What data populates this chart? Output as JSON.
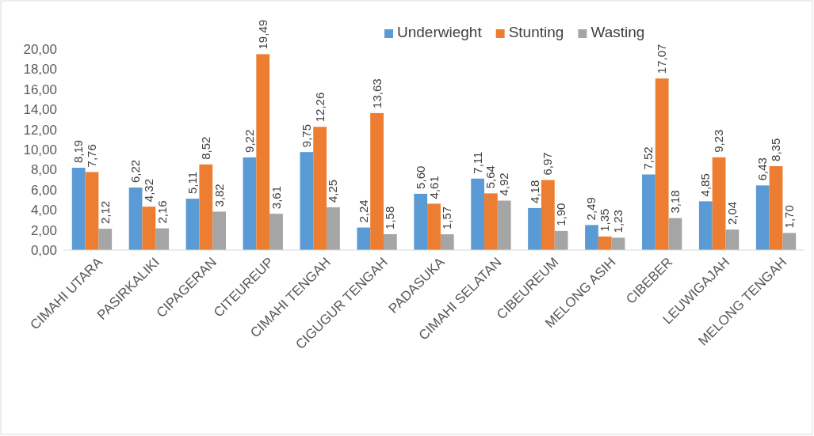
{
  "chart_data": {
    "type": "bar",
    "categories": [
      "CIMAHI UTARA",
      "PASIRKALIKI",
      "CIPAGERAN",
      "CITEUREUP",
      "CIMAHI TENGAH",
      "CIGUGUR TENGAH",
      "PADASUKA",
      "CIMAHI SELATAN",
      "CIBEUREUM",
      "MELONG ASIH",
      "CIBEBER",
      "LEUWIGAJAH",
      "MELONG TENGAH"
    ],
    "series": [
      {
        "name": "Underwieght",
        "color": "#5b9bd5",
        "values": [
          8.19,
          6.22,
          5.11,
          9.22,
          9.75,
          2.24,
          5.6,
          7.11,
          4.18,
          2.49,
          7.52,
          4.85,
          6.43
        ],
        "value_labels": [
          "8,19",
          "6,22",
          "5,11",
          "9,22",
          "9,75",
          "2,24",
          "5,60",
          "7,11",
          "4,18",
          "2,49",
          "7,52",
          "4,85",
          "6,43"
        ]
      },
      {
        "name": "Stunting",
        "color": "#ed7d31",
        "values": [
          7.76,
          4.32,
          8.52,
          19.49,
          12.26,
          13.63,
          4.61,
          5.64,
          6.97,
          1.35,
          17.07,
          9.23,
          8.35
        ],
        "value_labels": [
          "7,76",
          "4,32",
          "8,52",
          "19,49",
          "12,26",
          "13,63",
          "4,61",
          "5,64",
          "6,97",
          "1,35",
          "17,07",
          "9,23",
          "8,35"
        ]
      },
      {
        "name": "Wasting",
        "color": "#a5a5a5",
        "values": [
          2.12,
          2.16,
          3.82,
          3.61,
          4.25,
          1.58,
          1.57,
          4.92,
          1.9,
          1.23,
          3.18,
          2.04,
          1.7
        ],
        "value_labels": [
          "2,12",
          "2,16",
          "3,82",
          "3,61",
          "4,25",
          "1,58",
          "1,57",
          "4,92",
          "1,90",
          "1,23",
          "3,18",
          "2,04",
          "1,70"
        ]
      }
    ],
    "ylim": [
      0,
      20
    ],
    "yticks": [
      {
        "value": 0,
        "label": "0,00"
      },
      {
        "value": 2,
        "label": "2,00"
      },
      {
        "value": 4,
        "label": "4,00"
      },
      {
        "value": 6,
        "label": "6,00"
      },
      {
        "value": 8,
        "label": "8,00"
      },
      {
        "value": 10,
        "label": "10,00"
      },
      {
        "value": 12,
        "label": "12,00"
      },
      {
        "value": 14,
        "label": "14,00"
      },
      {
        "value": 16,
        "label": "16,00"
      },
      {
        "value": 18,
        "label": "18,00"
      },
      {
        "value": 20,
        "label": "20,00"
      }
    ],
    "grid": false,
    "legend": "top right"
  }
}
